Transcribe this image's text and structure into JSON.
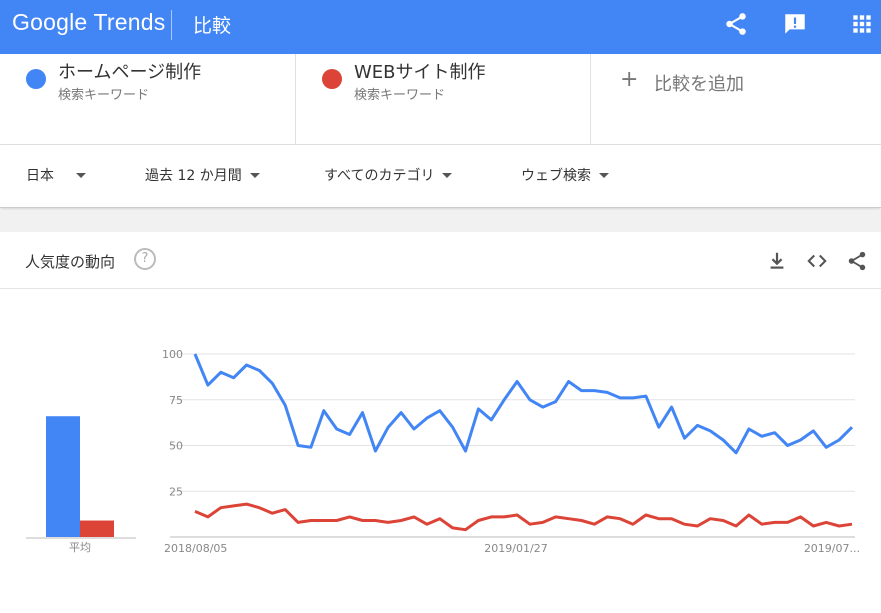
{
  "header": {
    "logo": "Google Trends",
    "page_title": "比較",
    "color": "#4285f4"
  },
  "terms": [
    {
      "name": "ホームページ制作",
      "subtitle": "検索キーワード",
      "color": "#4285f4"
    },
    {
      "name": "WEBサイト制作",
      "subtitle": "検索キーワード",
      "color": "#db4437"
    }
  ],
  "add_compare": {
    "label": "比較を追加"
  },
  "filters": {
    "region": "日本",
    "period": "過去 12 か月間",
    "category": "すべてのカテゴリ",
    "search_type": "ウェブ検索"
  },
  "card": {
    "title": "人気度の動向",
    "help": "?"
  },
  "chart_data": {
    "type": "line",
    "y_ticks": [
      100,
      75,
      50,
      25
    ],
    "ylim": [
      0,
      100
    ],
    "x_tick_labels": [
      "2018/08/05",
      "2019/01/27",
      "2019/07..."
    ],
    "grid": true,
    "average_label": "平均",
    "average_values": [
      66,
      9
    ],
    "series": [
      {
        "name": "ホームページ制作",
        "color": "#4285f4",
        "values": [
          100,
          83,
          90,
          87,
          94,
          91,
          84,
          72,
          50,
          49,
          69,
          59,
          56,
          68,
          47,
          60,
          68,
          59,
          65,
          69,
          60,
          47,
          70,
          64,
          75,
          85,
          75,
          71,
          74,
          85,
          80,
          80,
          79,
          76,
          76,
          77,
          60,
          71,
          54,
          61,
          58,
          53,
          46,
          59,
          55,
          57,
          50,
          53,
          58,
          49,
          53,
          60
        ]
      },
      {
        "name": "WEBサイト制作",
        "color": "#db4437",
        "values": [
          14,
          11,
          16,
          17,
          18,
          16,
          13,
          15,
          8,
          9,
          9,
          9,
          11,
          9,
          9,
          8,
          9,
          11,
          7,
          10,
          5,
          4,
          9,
          11,
          11,
          12,
          7,
          8,
          11,
          10,
          9,
          7,
          11,
          10,
          7,
          12,
          10,
          10,
          7,
          6,
          10,
          9,
          6,
          12,
          7,
          8,
          8,
          11,
          6,
          8,
          6,
          7
        ]
      }
    ]
  }
}
